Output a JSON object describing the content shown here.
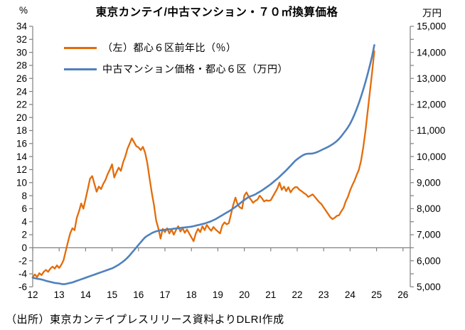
{
  "title": "東京カンテイ/中古マンション・７０㎡換算価格",
  "source_note": "（出所）東京カンテイプレスリリース資料よりDLRI作成",
  "chart_data": {
    "type": "line",
    "title": "東京カンテイ/中古マンション・７０㎡換算価格",
    "legend_position": "top-left-inside",
    "grid": "off",
    "x_frequency": "monthly",
    "x_range_years": [
      2012.0,
      2025.0
    ],
    "left_axis": {
      "unit": "%",
      "min": -6,
      "max": 34,
      "step": 2,
      "negative_label_color": "#FF0000"
    },
    "right_axis": {
      "unit": "万円",
      "min": 5000,
      "max": 15000,
      "tick_step": 500,
      "label_step": 1000
    },
    "x_axis": {
      "min": 12,
      "max": 26,
      "step": 1,
      "crosses_at_left_value": 0
    },
    "series": [
      {
        "name": "（左）都心６区前年比（％）",
        "axis": "left",
        "color": "#E36C0A",
        "values": [
          -4.5,
          -4.1,
          -4.5,
          -3.9,
          -4.2,
          -3.7,
          -3.4,
          -3.7,
          -3.2,
          -2.9,
          -3.2,
          -2.7,
          -3.1,
          -2.6,
          -1.9,
          -0.5,
          0.9,
          2.2,
          3.0,
          2.7,
          4.6,
          5.6,
          6.8,
          6.0,
          7.5,
          9.0,
          10.6,
          11.0,
          9.8,
          8.6,
          9.4,
          9.0,
          9.8,
          10.4,
          11.3,
          12.0,
          12.8,
          10.8,
          11.6,
          12.3,
          11.8,
          13.1,
          14.0,
          15.2,
          16.0,
          16.8,
          16.2,
          15.6,
          15.4,
          15.0,
          15.5,
          14.6,
          13.0,
          10.7,
          8.5,
          6.6,
          4.2,
          3.0,
          1.4,
          2.9,
          2.4,
          3.0,
          2.2,
          2.8,
          2.0,
          2.7,
          3.3,
          2.5,
          3.0,
          2.3,
          2.8,
          2.2,
          1.6,
          1.0,
          2.2,
          2.9,
          2.4,
          3.3,
          2.7,
          3.5,
          3.0,
          2.6,
          3.2,
          2.8,
          2.5,
          2.2,
          3.4,
          3.9,
          3.6,
          3.8,
          5.2,
          6.6,
          7.7,
          6.6,
          6.2,
          6.0,
          8.0,
          8.5,
          7.8,
          7.4,
          6.9,
          7.2,
          7.4,
          8.0,
          7.6,
          7.1,
          7.3,
          7.2,
          7.3,
          7.9,
          8.5,
          9.1,
          10.0,
          8.9,
          9.4,
          8.7,
          9.3,
          8.5,
          9.0,
          9.3,
          9.3,
          8.9,
          8.7,
          8.4,
          8.2,
          7.8,
          8.0,
          8.2,
          7.8,
          7.4,
          7.0,
          6.7,
          6.2,
          5.7,
          5.2,
          4.7,
          4.4,
          4.6,
          4.9,
          5.0,
          5.6,
          6.1,
          7.1,
          7.8,
          8.8,
          9.6,
          10.3,
          11.2,
          12.0,
          13.4,
          15.5,
          18.0,
          21.0,
          24.0,
          27.0,
          30.2
        ]
      },
      {
        "name": "中古マンション価格・都心６区（万円）",
        "axis": "right",
        "color": "#4F81BD",
        "values": [
          5350,
          5330,
          5310,
          5300,
          5280,
          5260,
          5230,
          5210,
          5190,
          5170,
          5150,
          5140,
          5130,
          5110,
          5100,
          5110,
          5130,
          5150,
          5170,
          5200,
          5230,
          5260,
          5290,
          5320,
          5350,
          5380,
          5410,
          5440,
          5470,
          5500,
          5530,
          5560,
          5590,
          5620,
          5650,
          5680,
          5710,
          5750,
          5800,
          5850,
          5910,
          5970,
          6040,
          6120,
          6210,
          6310,
          6410,
          6510,
          6610,
          6710,
          6810,
          6900,
          6960,
          7010,
          7060,
          7100,
          7130,
          7150,
          7170,
          7180,
          7190,
          7200,
          7210,
          7220,
          7230,
          7240,
          7250,
          7260,
          7270,
          7280,
          7290,
          7300,
          7310,
          7330,
          7350,
          7370,
          7390,
          7410,
          7430,
          7460,
          7490,
          7520,
          7560,
          7600,
          7650,
          7700,
          7750,
          7800,
          7850,
          7900,
          7950,
          8010,
          8070,
          8130,
          8200,
          8270,
          8330,
          8390,
          8450,
          8480,
          8510,
          8550,
          8600,
          8650,
          8700,
          8760,
          8820,
          8880,
          8940,
          9010,
          9080,
          9150,
          9230,
          9310,
          9390,
          9470,
          9560,
          9650,
          9740,
          9830,
          9900,
          9960,
          10020,
          10070,
          10100,
          10110,
          10110,
          10120,
          10140,
          10170,
          10210,
          10250,
          10290,
          10330,
          10370,
          10420,
          10470,
          10530,
          10600,
          10680,
          10780,
          10890,
          11000,
          11120,
          11260,
          11430,
          11620,
          11830,
          12060,
          12310,
          12580,
          12870,
          13180,
          13510,
          13860,
          14280
        ]
      }
    ]
  }
}
